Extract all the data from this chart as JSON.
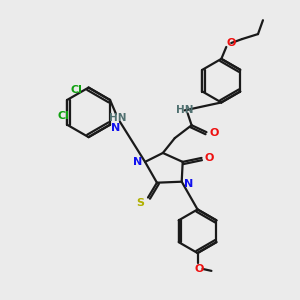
{
  "background_color": "#ebebeb",
  "atom_colors": {
    "C": "#1a1a1a",
    "N": "#1010ee",
    "O": "#ee1010",
    "S": "#b0b000",
    "Cl": "#10a010",
    "NH": "#507070"
  },
  "figsize": [
    3.0,
    3.0
  ],
  "dpi": 100
}
